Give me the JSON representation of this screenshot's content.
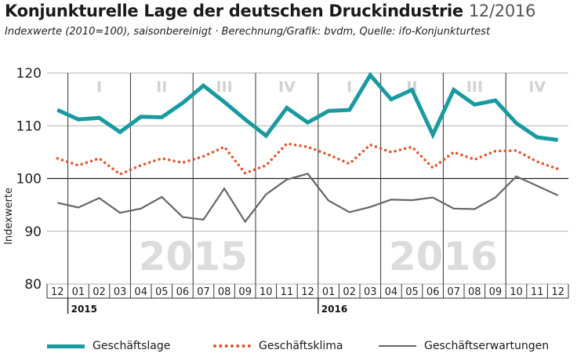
{
  "header": {
    "title": "Konjunkturelle Lage der deutschen Druckindustrie",
    "date": "12/2016",
    "subtitle": "Indexwerte (2010=100), saisonbereinigt · Berechnung/Grafik: bvdm, Quelle: ifo-Konjunkturtest"
  },
  "chart_data": {
    "type": "line",
    "ylabel": "Indexwerte",
    "ylim": [
      80,
      120
    ],
    "yticks": [
      80,
      90,
      100,
      110,
      120
    ],
    "reference_line": 100,
    "grid": true,
    "categories": [
      "12",
      "01",
      "02",
      "03",
      "04",
      "05",
      "06",
      "07",
      "08",
      "09",
      "10",
      "11",
      "12",
      "01",
      "02",
      "03",
      "04",
      "05",
      "06",
      "07",
      "08",
      "09",
      "10",
      "11",
      "12"
    ],
    "year_labels": [
      {
        "label": "2015",
        "start_index": 1
      },
      {
        "label": "2016",
        "start_index": 13
      }
    ],
    "background_years": [
      {
        "label": "2015",
        "start_index": 1
      },
      {
        "label": "2016",
        "start_index": 13
      }
    ],
    "quarters": [
      {
        "label": "I",
        "start_index": 1
      },
      {
        "label": "II",
        "start_index": 4
      },
      {
        "label": "III",
        "start_index": 7
      },
      {
        "label": "IV",
        "start_index": 10
      },
      {
        "label": "I",
        "start_index": 13
      },
      {
        "label": "II",
        "start_index": 16
      },
      {
        "label": "III",
        "start_index": 19
      },
      {
        "label": "IV",
        "start_index": 22
      }
    ],
    "series": [
      {
        "name": "Geschäftslage",
        "color": "#1a9aa0",
        "style": "solid-thick",
        "values": [
          113.0,
          111.2,
          111.5,
          108.8,
          111.7,
          111.6,
          114.3,
          117.6,
          114.5,
          111.2,
          108.1,
          113.4,
          110.6,
          112.8,
          113.0,
          119.6,
          115.0,
          116.8,
          108.3,
          116.8,
          114.0,
          114.8,
          110.5,
          107.8,
          107.3
        ]
      },
      {
        "name": "Geschäftsklima",
        "color": "#e0552b",
        "style": "dotted",
        "values": [
          103.8,
          102.5,
          103.8,
          100.8,
          102.5,
          103.8,
          103.0,
          104.2,
          106.0,
          101.0,
          102.5,
          106.6,
          106.0,
          104.5,
          102.8,
          106.4,
          105.0,
          106.0,
          102.0,
          105.0,
          103.6,
          105.2,
          105.3,
          103.2,
          101.8
        ]
      },
      {
        "name": "Geschäftserwartungen",
        "color": "#666666",
        "style": "solid-thin",
        "values": [
          95.4,
          94.5,
          96.3,
          93.5,
          94.3,
          96.5,
          92.7,
          92.2,
          98.1,
          91.8,
          97.0,
          99.8,
          100.9,
          95.8,
          93.6,
          94.6,
          96.0,
          95.9,
          96.4,
          94.3,
          94.2,
          96.4,
          100.4,
          98.6,
          96.8
        ]
      }
    ]
  }
}
